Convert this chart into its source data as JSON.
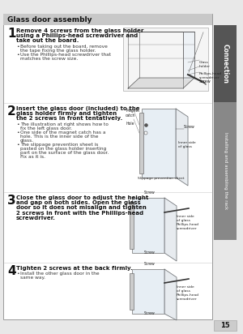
{
  "title": "Glass door assembly",
  "title_bg": "#c8c8c8",
  "page_bg": "#e8e8e8",
  "content_bg": "#ffffff",
  "border_color": "#999999",
  "sidebar_top_color": "#555555",
  "sidebar_bottom_color": "#888888",
  "sidebar_top_text": "Connection",
  "sidebar_bottom_text": "Installing and assembling the rack",
  "page_number": "15",
  "step1_bold": "Remove 4 screws from the glass holder\nusing a Phillips-head screwdriver and\ntake out the board.",
  "step1_bullets": [
    "Before taking out the board, remove the tape fixing the glass holder.",
    "Use the Phillips-head screwdriver that matches the screw size."
  ],
  "step2_bold": "Insert the glass door (included) to the\nglass holder firmly and tighten\nthe 2 screws in front tentatively.",
  "step2_bullets": [
    "The illustration at right shows how to fix the left glass door.",
    "One side of the magnet catch has a hole. This is the inner side of the glass.",
    "The slippage prevention sheet is pasted on the glass holder inserting part on the surface of the glass door. Fix as it is."
  ],
  "step3_bold": "Close the glass door to adjust the height\nand gap on both sides. Open the glass\ndoor so it does not misalign and tighten\n2 screws in front with the Phillips-head\nscrewdriver.",
  "step3_bullets": [],
  "step4_bold": "Tighten 2 screws at the back firmly.",
  "step4_bullets": [
    "Install the other glass door in the same way."
  ]
}
